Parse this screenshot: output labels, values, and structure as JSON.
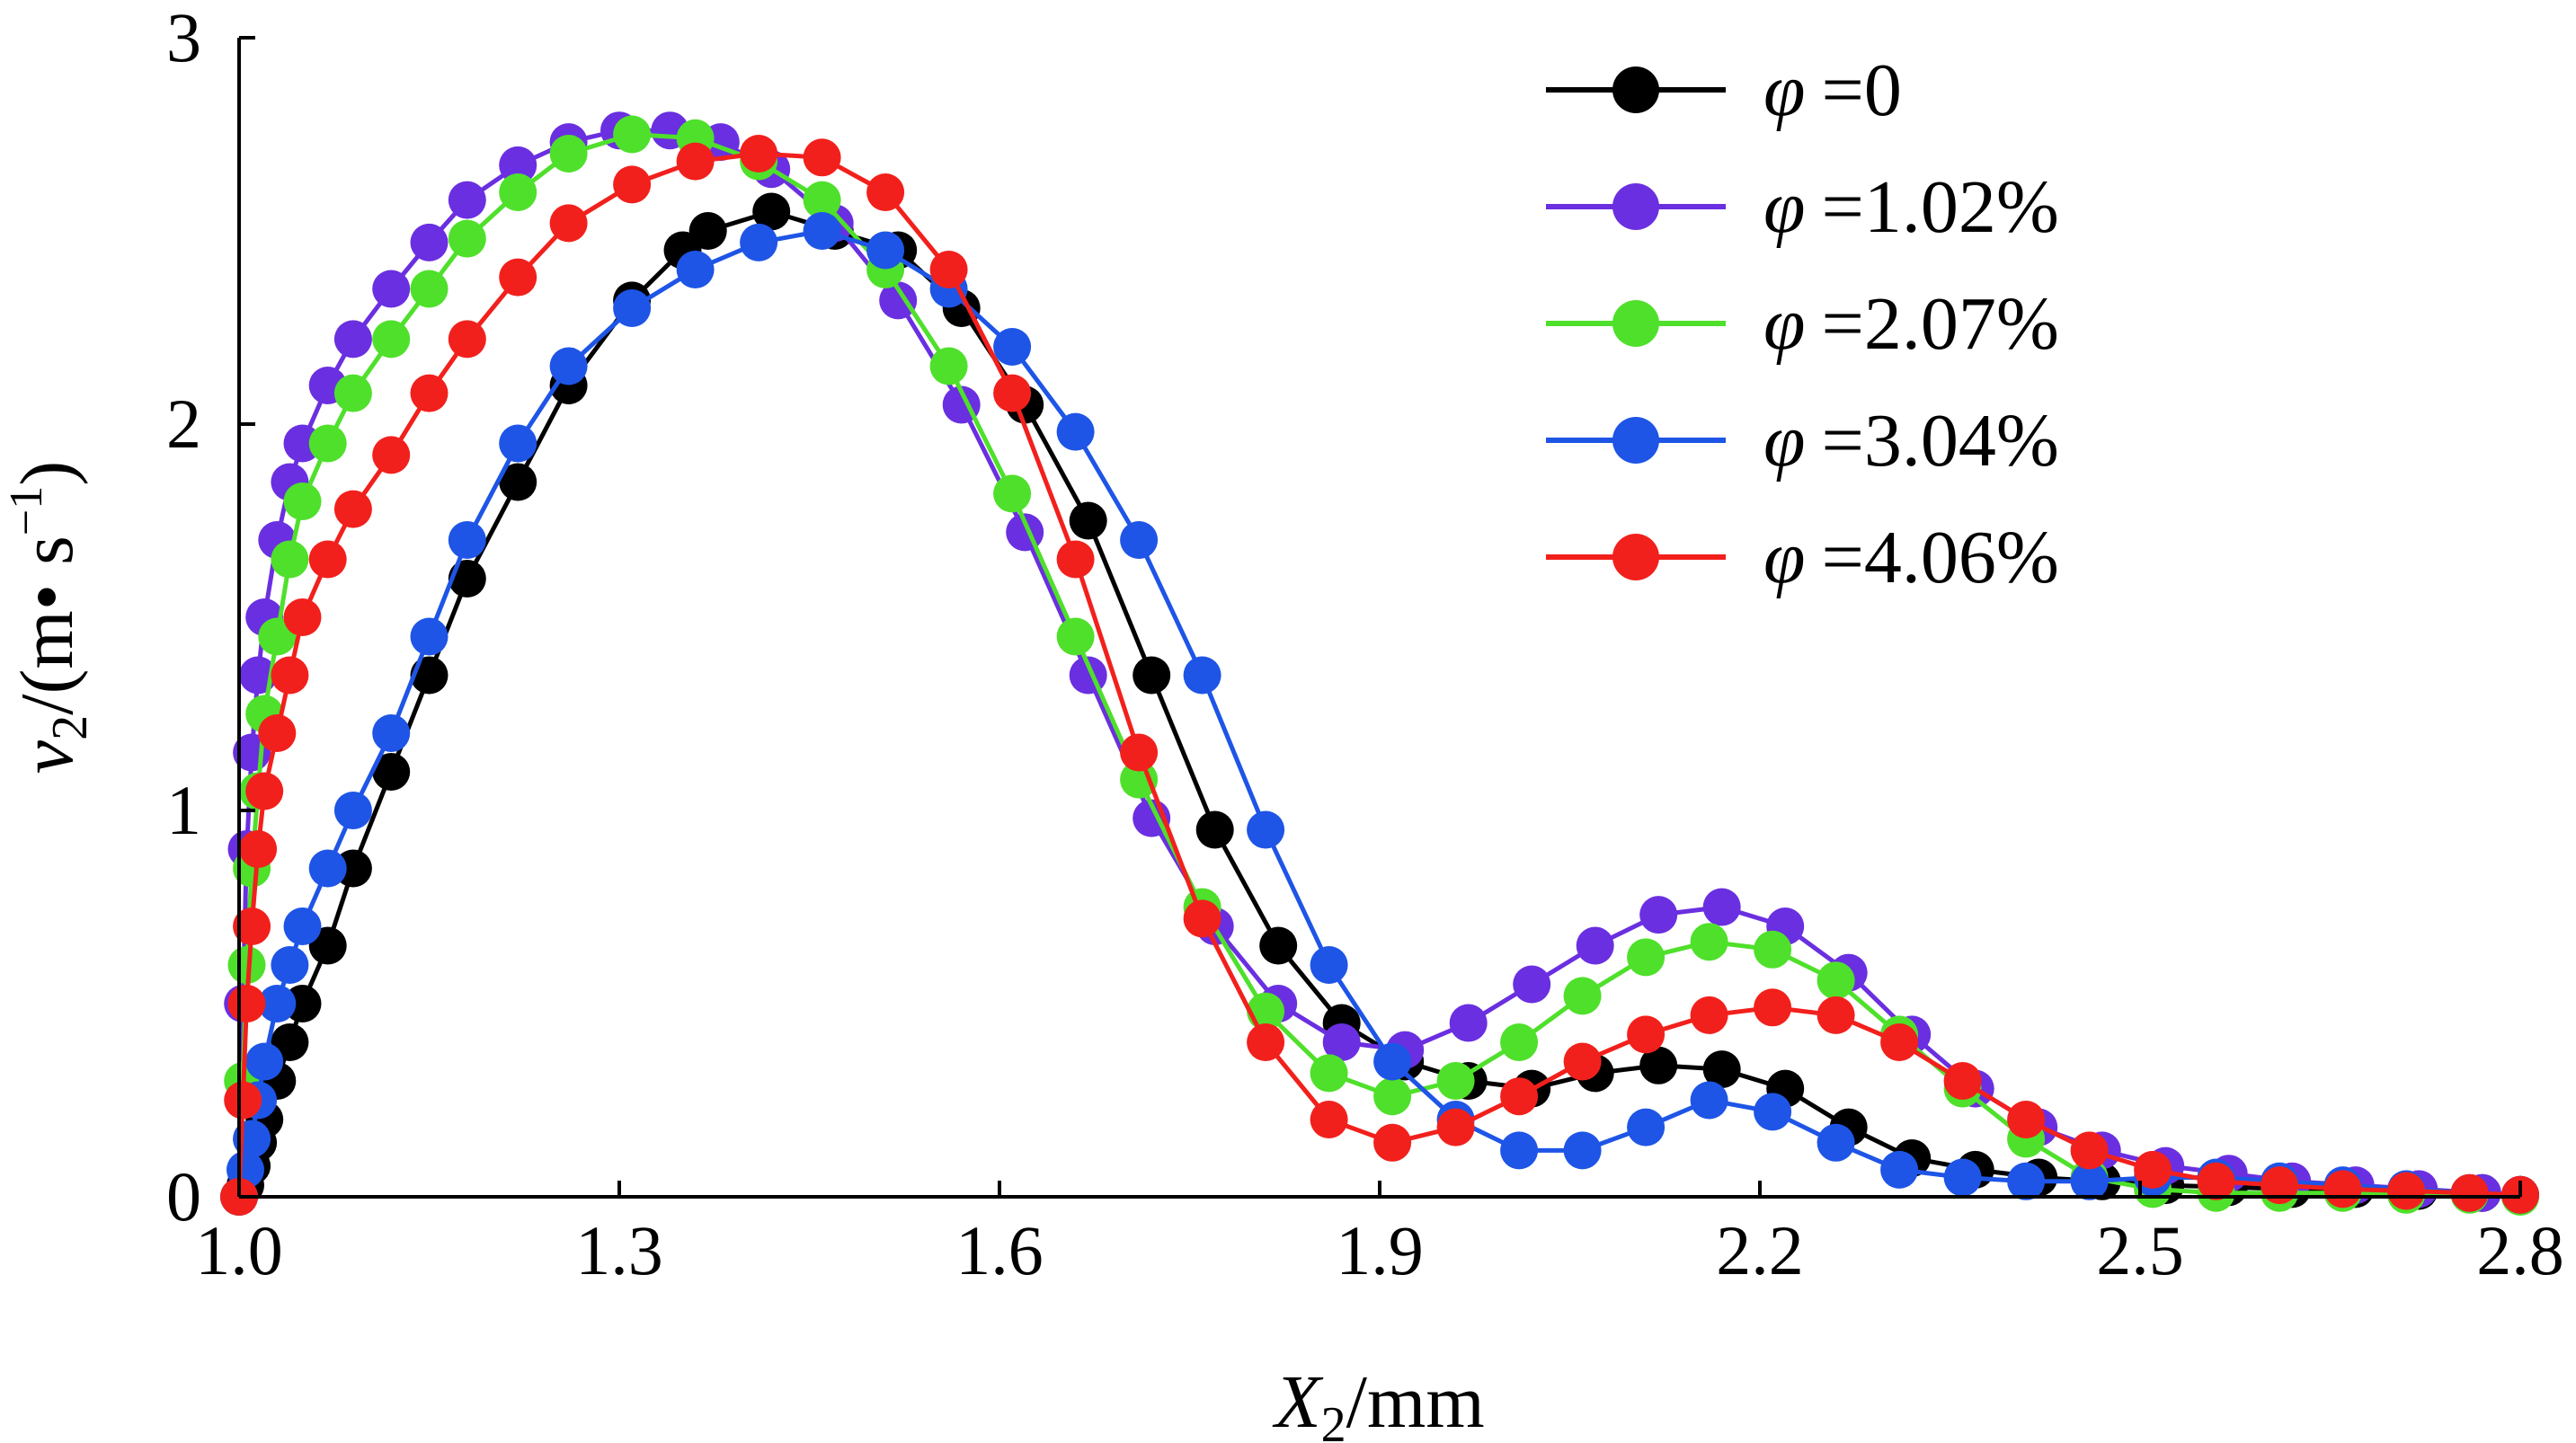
{
  "chart_data": {
    "type": "line",
    "xlabel": {
      "main": "X",
      "sub": "2",
      "unit": "/mm"
    },
    "ylabel": {
      "main": "v",
      "sub": "2",
      "unit_prefix": "/(m",
      "dot": "•",
      "unit_mid": " s",
      "sup": "−1",
      "unit_suffix": ")"
    },
    "xlim": [
      1.0,
      2.8
    ],
    "ylim": [
      0,
      3
    ],
    "xticks": [
      1.0,
      1.3,
      1.6,
      1.9,
      2.2,
      2.5,
      2.8
    ],
    "xtick_labels": [
      "1.0",
      "1.3",
      "1.6",
      "1.9",
      "2.2",
      "2.5",
      "2.8"
    ],
    "yticks": [
      0,
      1,
      2,
      3
    ],
    "ytick_labels": [
      "0",
      "1",
      "2",
      "3"
    ],
    "grid": false,
    "legend_position": "top-right",
    "legend_symbol": "φ",
    "series": [
      {
        "name": "=0",
        "color": "#000000",
        "x": [
          1.0,
          1.005,
          1.01,
          1.015,
          1.02,
          1.03,
          1.04,
          1.05,
          1.07,
          1.09,
          1.12,
          1.15,
          1.18,
          1.22,
          1.26,
          1.31,
          1.35,
          1.37,
          1.42,
          1.47,
          1.52,
          1.57,
          1.62,
          1.67,
          1.72,
          1.77,
          1.82,
          1.87,
          1.92,
          1.97,
          2.02,
          2.07,
          2.12,
          2.17,
          2.22,
          2.27,
          2.32,
          2.37,
          2.42,
          2.47,
          2.52,
          2.57,
          2.62,
          2.67,
          2.72,
          2.77,
          2.8
        ],
        "y": [
          0.0,
          0.03,
          0.08,
          0.14,
          0.2,
          0.3,
          0.4,
          0.5,
          0.65,
          0.85,
          1.1,
          1.35,
          1.6,
          1.85,
          2.1,
          2.32,
          2.45,
          2.5,
          2.55,
          2.5,
          2.45,
          2.3,
          2.05,
          1.75,
          1.35,
          0.95,
          0.65,
          0.45,
          0.35,
          0.3,
          0.28,
          0.32,
          0.34,
          0.33,
          0.28,
          0.18,
          0.1,
          0.07,
          0.05,
          0.04,
          0.03,
          0.025,
          0.02,
          0.02,
          0.015,
          0.01,
          0.005
        ]
      },
      {
        "name": "=1.02%",
        "color": "#6A2FE0",
        "x": [
          1.0,
          1.003,
          1.006,
          1.01,
          1.015,
          1.02,
          1.03,
          1.04,
          1.05,
          1.07,
          1.09,
          1.12,
          1.15,
          1.18,
          1.22,
          1.26,
          1.3,
          1.34,
          1.38,
          1.42,
          1.47,
          1.52,
          1.57,
          1.62,
          1.67,
          1.72,
          1.77,
          1.82,
          1.87,
          1.92,
          1.97,
          2.02,
          2.07,
          2.12,
          2.17,
          2.22,
          2.27,
          2.32,
          2.37,
          2.42,
          2.47,
          2.52,
          2.57,
          2.62,
          2.67,
          2.72,
          2.77,
          2.8
        ],
        "y": [
          0.0,
          0.5,
          0.9,
          1.15,
          1.35,
          1.5,
          1.7,
          1.85,
          1.95,
          2.1,
          2.22,
          2.35,
          2.47,
          2.58,
          2.67,
          2.73,
          2.76,
          2.76,
          2.73,
          2.66,
          2.52,
          2.32,
          2.05,
          1.72,
          1.35,
          0.98,
          0.7,
          0.5,
          0.4,
          0.38,
          0.45,
          0.55,
          0.65,
          0.73,
          0.75,
          0.7,
          0.58,
          0.42,
          0.28,
          0.18,
          0.12,
          0.08,
          0.06,
          0.04,
          0.03,
          0.02,
          0.01,
          0.005
        ]
      },
      {
        "name": "=2.07%",
        "color": "#4FE02B",
        "x": [
          1.0,
          1.003,
          1.006,
          1.01,
          1.015,
          1.02,
          1.03,
          1.04,
          1.05,
          1.07,
          1.09,
          1.12,
          1.15,
          1.18,
          1.22,
          1.26,
          1.31,
          1.36,
          1.41,
          1.46,
          1.51,
          1.56,
          1.61,
          1.66,
          1.71,
          1.76,
          1.81,
          1.86,
          1.91,
          1.96,
          2.01,
          2.06,
          2.11,
          2.16,
          2.21,
          2.26,
          2.31,
          2.36,
          2.41,
          2.46,
          2.51,
          2.56,
          2.61,
          2.66,
          2.71,
          2.76,
          2.8
        ],
        "y": [
          0.0,
          0.3,
          0.6,
          0.85,
          1.05,
          1.25,
          1.45,
          1.65,
          1.8,
          1.95,
          2.08,
          2.22,
          2.35,
          2.48,
          2.6,
          2.7,
          2.75,
          2.74,
          2.68,
          2.58,
          2.4,
          2.15,
          1.82,
          1.45,
          1.08,
          0.75,
          0.48,
          0.32,
          0.26,
          0.3,
          0.4,
          0.52,
          0.62,
          0.66,
          0.64,
          0.56,
          0.42,
          0.28,
          0.15,
          0.05,
          0.02,
          0.01,
          0.01,
          0.01,
          0.005,
          0.005,
          0.0
        ]
      },
      {
        "name": "=3.04%",
        "color": "#1E55E6",
        "x": [
          1.0,
          1.005,
          1.01,
          1.015,
          1.02,
          1.03,
          1.04,
          1.05,
          1.07,
          1.09,
          1.12,
          1.15,
          1.18,
          1.22,
          1.26,
          1.31,
          1.36,
          1.41,
          1.46,
          1.51,
          1.56,
          1.61,
          1.66,
          1.71,
          1.76,
          1.81,
          1.86,
          1.91,
          1.96,
          2.01,
          2.06,
          2.11,
          2.16,
          2.21,
          2.26,
          2.31,
          2.36,
          2.41,
          2.46,
          2.51,
          2.56,
          2.61,
          2.66,
          2.71,
          2.76,
          2.8
        ],
        "y": [
          0.0,
          0.07,
          0.15,
          0.25,
          0.35,
          0.5,
          0.6,
          0.7,
          0.85,
          1.0,
          1.2,
          1.45,
          1.7,
          1.95,
          2.15,
          2.3,
          2.4,
          2.47,
          2.5,
          2.45,
          2.35,
          2.2,
          1.98,
          1.7,
          1.35,
          0.95,
          0.6,
          0.35,
          0.2,
          0.12,
          0.12,
          0.18,
          0.25,
          0.22,
          0.14,
          0.07,
          0.05,
          0.04,
          0.04,
          0.05,
          0.05,
          0.04,
          0.03,
          0.02,
          0.01,
          0.005
        ]
      },
      {
        "name": "=4.06%",
        "color": "#F2201C",
        "x": [
          1.0,
          1.003,
          1.006,
          1.01,
          1.015,
          1.02,
          1.03,
          1.04,
          1.05,
          1.07,
          1.09,
          1.12,
          1.15,
          1.18,
          1.22,
          1.26,
          1.31,
          1.36,
          1.41,
          1.46,
          1.51,
          1.56,
          1.61,
          1.66,
          1.71,
          1.76,
          1.81,
          1.86,
          1.91,
          1.96,
          2.01,
          2.06,
          2.11,
          2.16,
          2.21,
          2.26,
          2.31,
          2.36,
          2.41,
          2.46,
          2.51,
          2.56,
          2.61,
          2.66,
          2.71,
          2.76,
          2.8
        ],
        "y": [
          0.0,
          0.25,
          0.5,
          0.7,
          0.9,
          1.05,
          1.2,
          1.35,
          1.5,
          1.65,
          1.78,
          1.92,
          2.08,
          2.22,
          2.38,
          2.52,
          2.62,
          2.68,
          2.7,
          2.69,
          2.6,
          2.4,
          2.08,
          1.65,
          1.15,
          0.72,
          0.4,
          0.2,
          0.14,
          0.18,
          0.26,
          0.35,
          0.42,
          0.47,
          0.49,
          0.47,
          0.4,
          0.3,
          0.2,
          0.12,
          0.07,
          0.04,
          0.03,
          0.02,
          0.015,
          0.01,
          0.005
        ]
      }
    ]
  }
}
